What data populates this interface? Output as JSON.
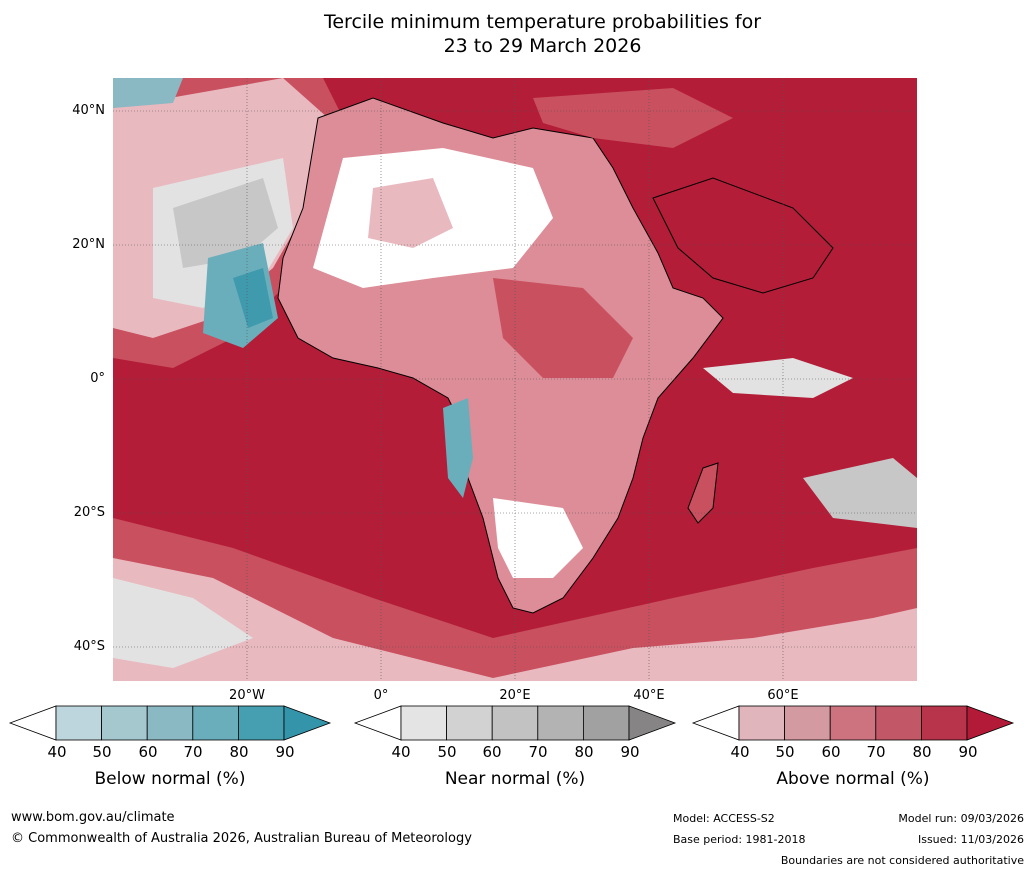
{
  "title": {
    "line1": "Tercile minimum temperature probabilities for",
    "line2": "23 to 29 March 2026"
  },
  "map": {
    "lat_labels": [
      "40°N",
      "20°N",
      "0°",
      "20°S",
      "40°S"
    ],
    "lon_labels": [
      "20°W",
      "0°",
      "20°E",
      "40°E",
      "60°E"
    ],
    "colors": {
      "ocean_above": "#b31d38",
      "above_70": "#c9505f",
      "above_50": "#dd8d97",
      "above_40": "#e9b9c0",
      "near": "#c7c7c7",
      "near_light": "#e2e2e2",
      "below": "#6aaebb",
      "below_dark": "#3f9aad",
      "white": "#ffffff",
      "coast": "#000000",
      "border": "#808080"
    }
  },
  "colorbars": [
    {
      "label": "Below normal (%)",
      "ticks": [
        "40",
        "50",
        "60",
        "70",
        "80",
        "90"
      ],
      "colors": [
        "#ffffff",
        "#bdd5dc",
        "#a5c8cf",
        "#8ab8c3",
        "#6aaebb",
        "#459fb1",
        "#3494a9"
      ]
    },
    {
      "label": "Near normal (%)",
      "ticks": [
        "40",
        "50",
        "60",
        "70",
        "80",
        "90"
      ],
      "colors": [
        "#ffffff",
        "#e4e4e4",
        "#d2d2d2",
        "#c2c2c2",
        "#b3b3b3",
        "#a1a1a1",
        "#868484"
      ]
    },
    {
      "label": "Above normal (%)",
      "ticks": [
        "40",
        "50",
        "60",
        "70",
        "80",
        "90"
      ],
      "colors": [
        "#ffffff",
        "#e0b5bc",
        "#d49aa2",
        "#cc737f",
        "#c25867",
        "#b7344b",
        "#b21a37"
      ]
    }
  ],
  "footer": {
    "website": "www.bom.gov.au/climate",
    "copyright": "© Commonwealth of Australia 2026, Australian Bureau of Meteorology",
    "model": "Model: ACCESS-S2",
    "base_period": "Base period: 1981-2018",
    "model_run": "Model run: 09/03/2026",
    "issued": "Issued: 11/03/2026",
    "disclaimer": "Boundaries are not considered authoritative"
  }
}
